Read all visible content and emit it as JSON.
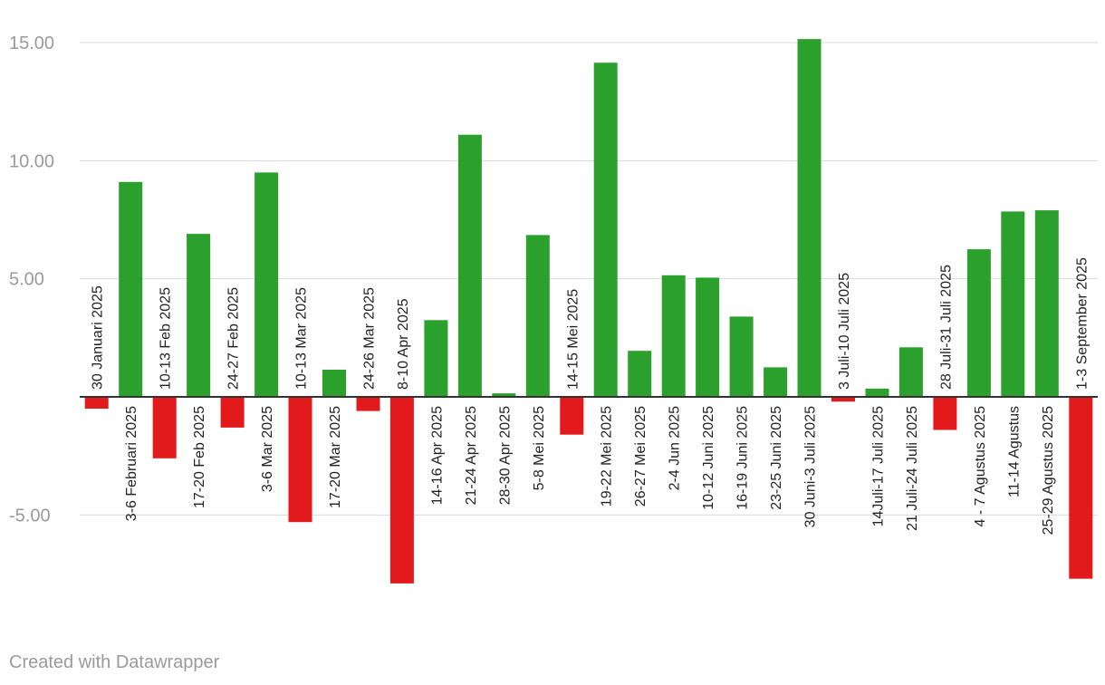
{
  "chart_data": {
    "type": "bar",
    "categories": [
      "30 Januari 2025",
      "3-6 Februari 2025",
      "10-13 Feb 2025",
      "17-20 Feb 2025",
      "24-27 Feb 2025",
      "3-6 Mar 2025",
      "10-13 Mar 2025",
      "17-20 Mar 2025",
      "24-26 Mar 2025",
      "8-10 Apr 2025",
      "14-16 Apr 2025",
      "21-24 Apr 2025",
      "28-30 Apr 2025",
      "5-8 Mei 2025",
      "14-15 Mei 2025",
      "19-22 Mei 2025",
      "26-27 Mei 2025",
      "2-4 Jun 2025",
      "10-12 Juni 2025",
      "16-19 Juni 2025",
      "23-25 Juni 2025",
      "30 Juni-3 Juli 2025",
      "3 Juli-10 Juli 2025",
      "14Juli-17 Juli 2025",
      "21 Juli-24 Juli 2025",
      "28 Juli-31 Juli 2025",
      "4 - 7 Agustus 2025",
      "11-14 Agustus",
      "25-29 Agustus 2025",
      "1-3 September 2025"
    ],
    "values": [
      -0.5,
      9.1,
      -2.6,
      6.9,
      -1.3,
      9.5,
      -5.3,
      1.15,
      -0.6,
      -7.9,
      3.25,
      11.1,
      0.15,
      6.85,
      -1.6,
      14.15,
      1.95,
      5.15,
      5.05,
      3.4,
      1.25,
      15.15,
      -0.2,
      0.35,
      2.1,
      -1.4,
      6.25,
      7.85,
      7.9,
      -7.7
    ],
    "yticks": [
      15,
      10,
      5,
      -5
    ],
    "ytick_labels": [
      "15.00",
      "10.00",
      "5.00",
      "-5.00"
    ],
    "ylim": [
      -9,
      16.5
    ],
    "grid": true,
    "colors": {
      "positive": "#2ca02c",
      "negative": "#e31a1c",
      "grid": "#d9d9d9",
      "baseline": "#333333"
    },
    "title": "",
    "xlabel": "",
    "ylabel": ""
  },
  "footer": {
    "credit": "Created with Datawrapper"
  }
}
